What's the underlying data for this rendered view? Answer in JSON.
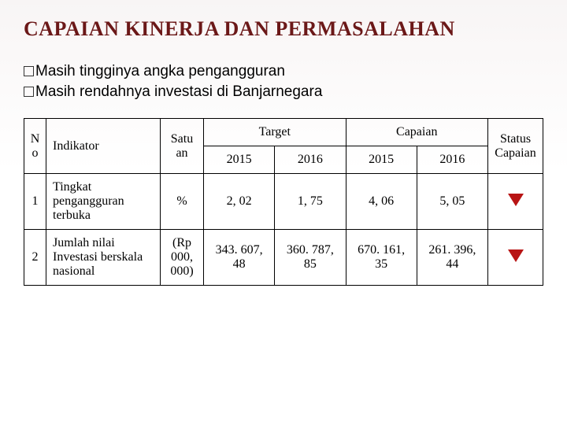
{
  "title": "CAPAIAN KINERJA DAN PERMASALAHAN",
  "bullets": [
    {
      "prefix": "Masih",
      "text": " tingginya angka pengangguran"
    },
    {
      "prefix": "Masih",
      "text": " rendahnya investasi di Banjarnegara"
    }
  ],
  "table": {
    "headers": {
      "no": "N\no",
      "indikator": "Indikator",
      "satuan": "Satu\nan",
      "target": "Target",
      "capaian": "Capaian",
      "status": "Status Capaian",
      "y2015": "2015",
      "y2016": "2016"
    },
    "rows": [
      {
        "no": "1",
        "indikator": "Tingkat pengangguran terbuka",
        "satuan": "%",
        "target_2015": "2, 02",
        "target_2016": "1, 75",
        "capaian_2015": "4, 06",
        "capaian_2016": "5, 05",
        "status_color": "#b81414"
      },
      {
        "no": "2",
        "indikator": "Jumlah nilai Investasi berskala nasional",
        "satuan": "(Rp 000, 000)",
        "target_2015": "343. 607, 48",
        "target_2016": "360. 787, 85",
        "capaian_2015": "670. 161, 35",
        "capaian_2016": "261. 396, 44",
        "status_color": "#b81414"
      }
    ]
  },
  "colors": {
    "title": "#6b1818",
    "arrow": "#b81414",
    "border": "#000000",
    "bg_top": "#f8f5f5",
    "bg_bottom": "#ffffff"
  }
}
